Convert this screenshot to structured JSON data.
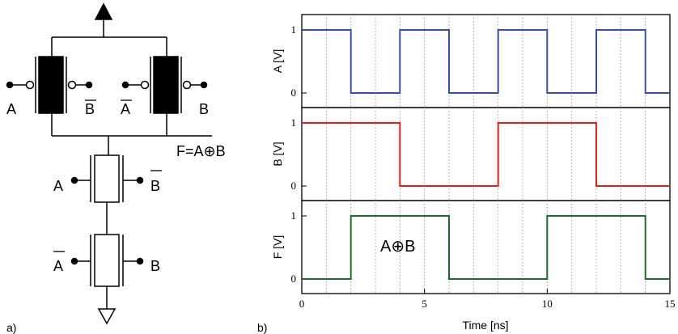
{
  "panel_a": {
    "panel_label": "a)",
    "output_label": "F=A⊕B",
    "pmos_left_in_a": "A",
    "pmos_left_in_b": "B",
    "pmos_right_in_a": "A",
    "pmos_right_in_b": "B",
    "nmos_top_left": "A",
    "nmos_top_right": "B",
    "nmos_bottom_left": "A",
    "nmos_bottom_right": "B",
    "supply_icon": "vdd-arrow-icon",
    "ground_icon": "ground-icon"
  },
  "panel_b": {
    "panel_label": "b)",
    "annotation": "A⊕B"
  },
  "chart_data": {
    "type": "line",
    "x_unit_label": "Time [ns]",
    "xlim": [
      0,
      15
    ],
    "x_ticks": [
      "0",
      "5",
      "10",
      "15"
    ],
    "grid": "vertical dotted every 1 ns",
    "subplots": [
      {
        "ylabel": "A [V]",
        "y_ticks": [
          "0",
          "1"
        ],
        "color": "#3a4fa0",
        "x": [
          0,
          2,
          2,
          4,
          4,
          6,
          6,
          8,
          8,
          10,
          10,
          12,
          12,
          14,
          14,
          15
        ],
        "y": [
          1,
          1,
          0,
          0,
          1,
          1,
          0,
          0,
          1,
          1,
          0,
          0,
          1,
          1,
          0,
          0
        ]
      },
      {
        "ylabel": "B [V]",
        "y_ticks": [
          "0",
          "1"
        ],
        "color": "#e02020",
        "x": [
          0,
          4,
          4,
          8,
          8,
          12,
          12,
          15
        ],
        "y": [
          1,
          1,
          0,
          0,
          1,
          1,
          0,
          0
        ]
      },
      {
        "ylabel": "F [V]",
        "y_ticks": [
          "0",
          "1"
        ],
        "color": "#1f6b2a",
        "x": [
          0,
          2,
          2,
          6,
          6,
          10,
          10,
          14,
          14,
          15
        ],
        "y": [
          0,
          0,
          1,
          1,
          0,
          0,
          1,
          1,
          0,
          0
        ]
      }
    ]
  }
}
